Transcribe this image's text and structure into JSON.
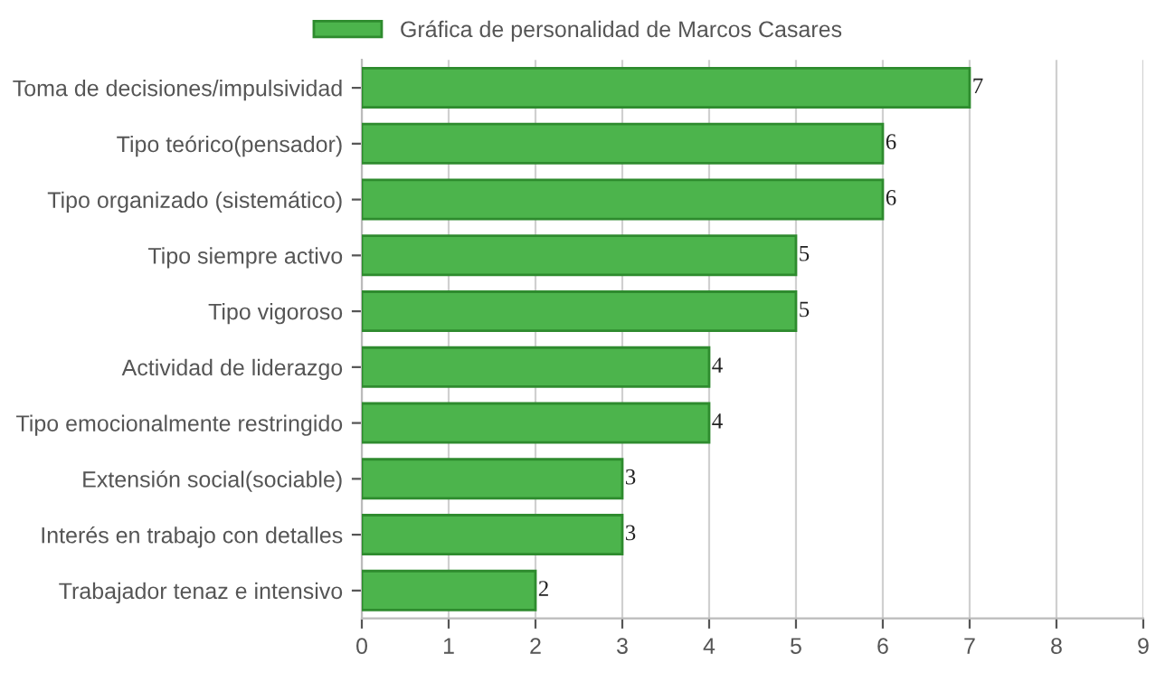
{
  "chart_data": {
    "type": "bar",
    "orientation": "horizontal",
    "categories": [
      "Toma de decisiones/impulsividad",
      "Tipo teórico(pensador)",
      "Tipo organizado (sistemático)",
      "Tipo siempre activo",
      "Tipo vigoroso",
      "Actividad de liderazgo",
      "Tipo emocionalmente restringido",
      "Extensión social(sociable)",
      "Interés en trabajo con detalles",
      "Trabajador tenaz e intensivo"
    ],
    "series": [
      {
        "name": "Gráfica de personalidad de Marcos Casares",
        "color": "#4cb44c",
        "values": [
          7,
          6,
          6,
          5,
          5,
          4,
          4,
          3,
          3,
          2
        ]
      }
    ],
    "xlim": [
      0,
      9
    ],
    "xticks": [
      0,
      1,
      2,
      3,
      4,
      5,
      6,
      7,
      8,
      9
    ],
    "grid": "x",
    "legend": "top",
    "data_labels": true
  }
}
